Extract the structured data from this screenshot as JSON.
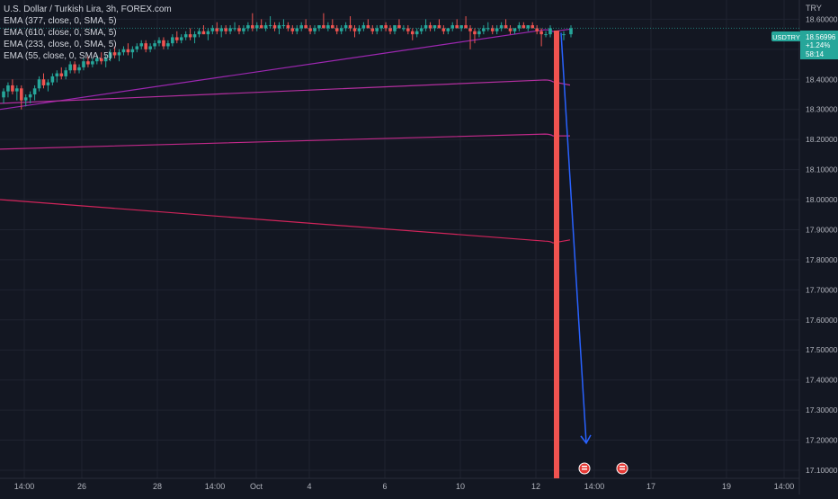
{
  "header": {
    "symbol_line": "U.S. Dollar / Turkish Lira, 3h, FOREX.com",
    "indicators": [
      "EMA (377, close, 0, SMA, 5)",
      "EMA (610, close, 0, SMA, 5)",
      "EMA (233, close, 0, SMA, 5)",
      "EMA (55, close, 0, SMA, 5)"
    ]
  },
  "price_scale": {
    "currency": "TRY",
    "ticks": [
      "18.60000",
      "18.50000",
      "18.40000",
      "18.30000",
      "18.20000",
      "18.10000",
      "18.00000",
      "17.90000",
      "17.80000",
      "17.70000",
      "17.60000",
      "17.50000",
      "17.40000",
      "17.30000",
      "17.20000",
      "17.10000"
    ]
  },
  "price_tag": {
    "symbol": "USDTRY",
    "price": "18.56996",
    "change": "+1.24%",
    "countdown": "58:14"
  },
  "time_axis": {
    "labels": [
      "14:00",
      "26",
      "28",
      "14:00",
      "Oct",
      "4",
      "6",
      "10",
      "12",
      "14:00",
      "17",
      "19",
      "14:00"
    ]
  },
  "colors": {
    "background": "#131722",
    "up": "#26a69a",
    "down": "#ef5350",
    "ema55": "#9c27b0",
    "ema233": "#b42fa0",
    "ema377": "#c2298a",
    "ema610": "#d0245a",
    "marker_line": "#f05350",
    "projection": "#2962ff"
  },
  "chart_data": {
    "type": "candlestick",
    "title": "U.S. Dollar / Turkish Lira, 3h, FOREX.com",
    "ylim": [
      17.085,
      18.64
    ],
    "x_categories": [
      "14:00",
      "26",
      "28",
      "14:00",
      "Oct",
      "4",
      "6",
      "10",
      "12",
      "14:00",
      "17",
      "19",
      "14:00"
    ],
    "candles": [
      [
        18.34,
        18.37,
        18.32,
        18.36
      ],
      [
        18.36,
        18.39,
        18.34,
        18.38
      ],
      [
        18.38,
        18.4,
        18.35,
        18.36
      ],
      [
        18.36,
        18.38,
        18.33,
        18.37
      ],
      [
        18.37,
        18.38,
        18.3,
        18.33
      ],
      [
        18.33,
        18.35,
        18.31,
        18.34
      ],
      [
        18.34,
        18.36,
        18.32,
        18.35
      ],
      [
        18.35,
        18.38,
        18.33,
        18.37
      ],
      [
        18.37,
        18.41,
        18.36,
        18.4
      ],
      [
        18.4,
        18.42,
        18.37,
        18.38
      ],
      [
        18.38,
        18.4,
        18.36,
        18.39
      ],
      [
        18.39,
        18.42,
        18.38,
        18.41
      ],
      [
        18.41,
        18.43,
        18.39,
        18.42
      ],
      [
        18.42,
        18.44,
        18.4,
        18.41
      ],
      [
        18.41,
        18.44,
        18.4,
        18.43
      ],
      [
        18.43,
        18.46,
        18.42,
        18.45
      ],
      [
        18.45,
        18.46,
        18.42,
        18.43
      ],
      [
        18.43,
        18.45,
        18.42,
        18.44
      ],
      [
        18.44,
        18.47,
        18.43,
        18.46
      ],
      [
        18.46,
        18.48,
        18.44,
        18.45
      ],
      [
        18.45,
        18.47,
        18.44,
        18.46
      ],
      [
        18.46,
        18.48,
        18.45,
        18.47
      ],
      [
        18.47,
        18.49,
        18.45,
        18.46
      ],
      [
        18.46,
        18.48,
        18.44,
        18.47
      ],
      [
        18.47,
        18.5,
        18.46,
        18.49
      ],
      [
        18.49,
        18.51,
        18.47,
        18.48
      ],
      [
        18.48,
        18.5,
        18.46,
        18.49
      ],
      [
        18.49,
        18.51,
        18.48,
        18.5
      ],
      [
        18.5,
        18.52,
        18.48,
        18.49
      ],
      [
        18.49,
        18.51,
        18.47,
        18.5
      ],
      [
        18.5,
        18.52,
        18.49,
        18.51
      ],
      [
        18.51,
        18.53,
        18.5,
        18.52
      ],
      [
        18.52,
        18.53,
        18.49,
        18.5
      ],
      [
        18.5,
        18.52,
        18.49,
        18.51
      ],
      [
        18.51,
        18.53,
        18.5,
        18.52
      ],
      [
        18.52,
        18.54,
        18.51,
        18.53
      ],
      [
        18.53,
        18.54,
        18.5,
        18.51
      ],
      [
        18.51,
        18.53,
        18.5,
        18.52
      ],
      [
        18.52,
        18.55,
        18.51,
        18.54
      ],
      [
        18.54,
        18.56,
        18.52,
        18.53
      ],
      [
        18.53,
        18.55,
        18.52,
        18.54
      ],
      [
        18.54,
        18.56,
        18.53,
        18.55
      ],
      [
        18.55,
        18.57,
        18.53,
        18.54
      ],
      [
        18.54,
        18.56,
        18.52,
        18.55
      ],
      [
        18.55,
        18.57,
        18.54,
        18.56
      ],
      [
        18.56,
        18.58,
        18.55,
        18.55
      ],
      [
        18.55,
        18.57,
        18.53,
        18.56
      ],
      [
        18.56,
        18.58,
        18.55,
        18.57
      ],
      [
        18.57,
        18.59,
        18.55,
        18.56
      ],
      [
        18.56,
        18.58,
        18.54,
        18.57
      ],
      [
        18.57,
        18.58,
        18.55,
        18.56
      ],
      [
        18.56,
        18.58,
        18.55,
        18.57
      ],
      [
        18.57,
        18.59,
        18.56,
        18.57
      ],
      [
        18.57,
        18.58,
        18.55,
        18.56
      ],
      [
        18.56,
        18.58,
        18.55,
        18.57
      ],
      [
        18.57,
        18.59,
        18.56,
        18.58
      ],
      [
        18.58,
        18.62,
        18.56,
        18.57
      ],
      [
        18.57,
        18.59,
        18.56,
        18.58
      ],
      [
        18.58,
        18.6,
        18.57,
        18.57
      ],
      [
        18.57,
        18.59,
        18.56,
        18.58
      ],
      [
        18.58,
        18.61,
        18.57,
        18.58
      ],
      [
        18.58,
        18.59,
        18.56,
        18.57
      ],
      [
        18.57,
        18.59,
        18.55,
        18.58
      ],
      [
        18.58,
        18.6,
        18.57,
        18.58
      ],
      [
        18.58,
        18.59,
        18.56,
        18.57
      ],
      [
        18.57,
        18.58,
        18.55,
        18.56
      ],
      [
        18.56,
        18.58,
        18.55,
        18.57
      ],
      [
        18.57,
        18.59,
        18.56,
        18.58
      ],
      [
        18.58,
        18.6,
        18.57,
        18.57
      ],
      [
        18.57,
        18.58,
        18.55,
        18.56
      ],
      [
        18.56,
        18.58,
        18.55,
        18.57
      ],
      [
        18.57,
        18.58,
        18.56,
        18.58
      ],
      [
        18.58,
        18.62,
        18.57,
        18.57
      ],
      [
        18.57,
        18.59,
        18.56,
        18.58
      ],
      [
        18.58,
        18.6,
        18.57,
        18.57
      ],
      [
        18.57,
        18.58,
        18.55,
        18.56
      ],
      [
        18.56,
        18.58,
        18.55,
        18.57
      ],
      [
        18.57,
        18.59,
        18.56,
        18.58
      ],
      [
        18.58,
        18.61,
        18.56,
        18.57
      ],
      [
        18.57,
        18.58,
        18.54,
        18.56
      ],
      [
        18.56,
        18.58,
        18.55,
        18.57
      ],
      [
        18.57,
        18.59,
        18.56,
        18.58
      ],
      [
        18.58,
        18.6,
        18.57,
        18.57
      ],
      [
        18.57,
        18.58,
        18.55,
        18.56
      ],
      [
        18.56,
        18.58,
        18.55,
        18.57
      ],
      [
        18.57,
        18.58,
        18.56,
        18.58
      ],
      [
        18.58,
        18.59,
        18.56,
        18.57
      ],
      [
        18.57,
        18.58,
        18.55,
        18.56
      ],
      [
        18.56,
        18.58,
        18.55,
        18.58
      ],
      [
        18.58,
        18.6,
        18.57,
        18.57
      ],
      [
        18.57,
        18.58,
        18.56,
        18.57
      ],
      [
        18.57,
        18.58,
        18.55,
        18.56
      ],
      [
        18.56,
        18.57,
        18.53,
        18.55
      ],
      [
        18.55,
        18.57,
        18.54,
        18.56
      ],
      [
        18.56,
        18.58,
        18.55,
        18.57
      ],
      [
        18.57,
        18.6,
        18.56,
        18.58
      ],
      [
        18.58,
        18.59,
        18.56,
        18.57
      ],
      [
        18.57,
        18.58,
        18.56,
        18.58
      ],
      [
        18.58,
        18.6,
        18.57,
        18.57
      ],
      [
        18.57,
        18.58,
        18.55,
        18.56
      ],
      [
        18.56,
        18.57,
        18.55,
        18.57
      ],
      [
        18.57,
        18.59,
        18.56,
        18.58
      ],
      [
        18.58,
        18.6,
        18.57,
        18.57
      ],
      [
        18.57,
        18.58,
        18.56,
        18.58
      ],
      [
        18.58,
        18.61,
        18.57,
        18.57
      ],
      [
        18.57,
        18.58,
        18.5,
        18.56
      ],
      [
        18.56,
        18.57,
        18.52,
        18.55
      ],
      [
        18.55,
        18.57,
        18.54,
        18.56
      ],
      [
        18.56,
        18.58,
        18.55,
        18.57
      ],
      [
        18.57,
        18.59,
        18.56,
        18.57
      ],
      [
        18.57,
        18.58,
        18.55,
        18.56
      ],
      [
        18.56,
        18.58,
        18.55,
        18.57
      ],
      [
        18.57,
        18.59,
        18.56,
        18.58
      ],
      [
        18.58,
        18.6,
        18.57,
        18.57
      ],
      [
        18.57,
        18.58,
        18.55,
        18.56
      ],
      [
        18.56,
        18.57,
        18.55,
        18.57
      ],
      [
        18.57,
        18.59,
        18.56,
        18.58
      ],
      [
        18.58,
        18.59,
        18.57,
        18.57
      ],
      [
        18.57,
        18.58,
        18.56,
        18.58
      ],
      [
        18.58,
        18.59,
        18.57,
        18.57
      ],
      [
        18.57,
        18.58,
        18.55,
        18.56
      ],
      [
        18.56,
        18.57,
        18.51,
        18.55
      ],
      [
        18.55,
        18.56,
        18.54,
        18.55
      ],
      [
        18.55,
        18.58,
        18.54,
        18.57
      ]
    ],
    "ema_series": [
      {
        "name": "EMA (55, close, 0, SMA, 5)",
        "start": 18.3,
        "end": 18.565,
        "tail": 18.567
      },
      {
        "name": "EMA (233, close, 0, SMA, 5)",
        "start": 18.32,
        "end": 18.398,
        "tail": 18.381
      },
      {
        "name": "EMA (377, close, 0, SMA, 5)",
        "start": 18.168,
        "end": 18.218,
        "tail": 18.212
      },
      {
        "name": "EMA (610, close, 0, SMA, 5)",
        "start": 18.0,
        "end": 17.862,
        "tail": 17.866
      }
    ],
    "annotations": {
      "projection_arrow": {
        "from_price": 18.555,
        "to_price": 17.19
      },
      "event_markers": 2
    }
  }
}
